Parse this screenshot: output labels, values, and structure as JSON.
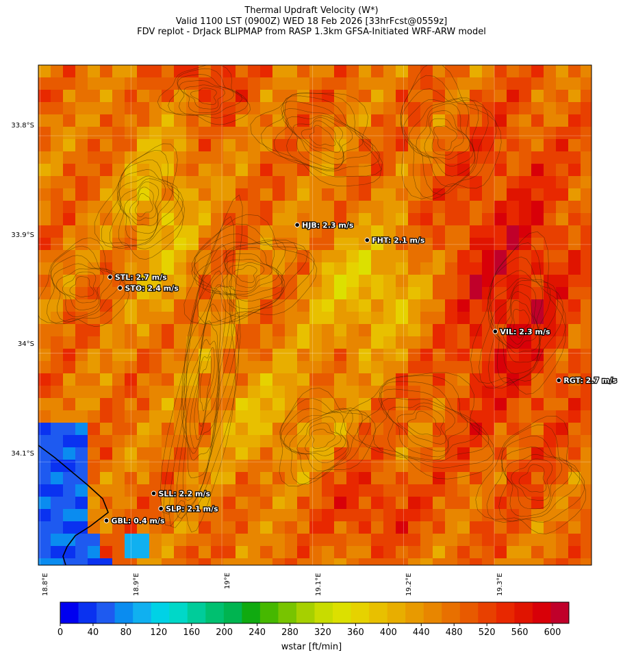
{
  "header": {
    "title": "Thermal Updraft Velocity (W*)",
    "valid": "Valid 1100 LST (0900Z) WED 18 Feb 2026 [33hrFcst@0559z]",
    "model": "FDV replot - DrJack BLIPMAP from RASP 1.3km GFSA-Initiated WRF-ARW model"
  },
  "map": {
    "lat_labels": [
      "33.8°S",
      "33.9°S",
      "34°S",
      "34.1°S"
    ],
    "lon_labels": [
      "18.8°E",
      "18.9°E",
      "19°E",
      "19.1°E",
      "19.2°E",
      "19.3°E"
    ],
    "lat_ticks": [
      33.8,
      33.9,
      34.0,
      34.1
    ],
    "lon_ticks": [
      18.8,
      18.9,
      19.0,
      19.1,
      19.2,
      19.3
    ],
    "lat_range": [
      33.735,
      34.195
    ],
    "lon_range": [
      18.798,
      19.407
    ],
    "stations": [
      {
        "code": "HJB",
        "label": "HJB: 2.3 m/s",
        "lat": 33.882,
        "lon": 19.083
      },
      {
        "code": "FHT",
        "label": "FHT: 2.1 m/s",
        "lat": 33.896,
        "lon": 19.16
      },
      {
        "code": "STL",
        "label": "STL: 2.7 m/s",
        "lat": 33.93,
        "lon": 18.877
      },
      {
        "code": "STO",
        "label": "STO: 2.4 m/s",
        "lat": 33.94,
        "lon": 18.888
      },
      {
        "code": "VIL",
        "label": "VIL: 2.3 m/s",
        "lat": 33.98,
        "lon": 19.301
      },
      {
        "code": "RGT",
        "label": "RGT: 2.7 m/s",
        "lat": 34.025,
        "lon": 19.371
      },
      {
        "code": "SLL",
        "label": "SLL: 2.2 m/s",
        "lat": 34.129,
        "lon": 18.925
      },
      {
        "code": "SLP",
        "label": "SLP: 2.1 m/s",
        "lat": 34.143,
        "lon": 18.933
      },
      {
        "code": "GBL",
        "label": "GBL: 0.4 m/s",
        "lat": 34.154,
        "lon": 18.873
      }
    ]
  },
  "colorbar": {
    "label": "wstar [ft/min]",
    "tick_labels": [
      "0",
      "40",
      "80",
      "120",
      "160",
      "200",
      "240",
      "280",
      "320",
      "360",
      "400",
      "440",
      "480",
      "520",
      "560",
      "600"
    ],
    "tick_values": [
      0,
      40,
      80,
      120,
      160,
      200,
      240,
      280,
      320,
      360,
      400,
      440,
      480,
      520,
      560,
      600
    ],
    "min": 0,
    "max": 620,
    "colors": [
      "#0000f0",
      "#0a32f0",
      "#1e5af0",
      "#0a8cf0",
      "#10b0f0",
      "#00d2e6",
      "#00d8c8",
      "#00cc9a",
      "#00c070",
      "#00b450",
      "#10aa10",
      "#46b800",
      "#78c400",
      "#a6d000",
      "#c8dc00",
      "#dce000",
      "#e6d200",
      "#e8c000",
      "#e8ae00",
      "#e89a00",
      "#e88600",
      "#e87000",
      "#e85a00",
      "#e84000",
      "#e82800",
      "#e01400",
      "#d80008",
      "#c0002a"
    ]
  }
}
